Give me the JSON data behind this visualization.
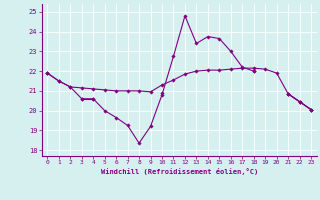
{
  "x": [
    0,
    1,
    2,
    3,
    4,
    5,
    6,
    7,
    8,
    9,
    10,
    11,
    12,
    13,
    14,
    15,
    16,
    17,
    18,
    19,
    20,
    21,
    22,
    23
  ],
  "line1": [
    21.9,
    21.5,
    21.2,
    21.15,
    21.1,
    21.05,
    21.0,
    21.0,
    21.0,
    20.95,
    21.3,
    21.55,
    21.85,
    22.0,
    22.05,
    22.05,
    22.1,
    22.15,
    22.15,
    22.1,
    21.9,
    20.85,
    20.45,
    20.05
  ],
  "line2": [
    21.9,
    21.5,
    21.2,
    20.6,
    20.6,
    20.0,
    19.65,
    19.25,
    18.35,
    19.2,
    20.8,
    22.75,
    24.8,
    23.4,
    23.75,
    23.65,
    23.0,
    22.2,
    22.0,
    null,
    null,
    20.85,
    20.45,
    20.05
  ],
  "line3": [
    21.9,
    null,
    null,
    20.6,
    20.6,
    null,
    null,
    null,
    null,
    null,
    20.9,
    null,
    null,
    null,
    null,
    null,
    null,
    null,
    22.0,
    null,
    null,
    20.85,
    20.45,
    20.05
  ],
  "ylim": [
    17.7,
    25.4
  ],
  "xlim": [
    -0.5,
    23.5
  ],
  "yticks": [
    18,
    19,
    20,
    21,
    22,
    23,
    24,
    25
  ],
  "xticks": [
    0,
    1,
    2,
    3,
    4,
    5,
    6,
    7,
    8,
    9,
    10,
    11,
    12,
    13,
    14,
    15,
    16,
    17,
    18,
    19,
    20,
    21,
    22,
    23
  ],
  "xlabel": "Windchill (Refroidissement éolien,°C)",
  "line_color": "#800080",
  "marker": "D",
  "marker_size": 1.8,
  "line_width": 0.8,
  "bg_color": "#d6f0f0",
  "grid_color": "#ffffff",
  "tick_color": "#800080",
  "xlabel_color": "#800080"
}
